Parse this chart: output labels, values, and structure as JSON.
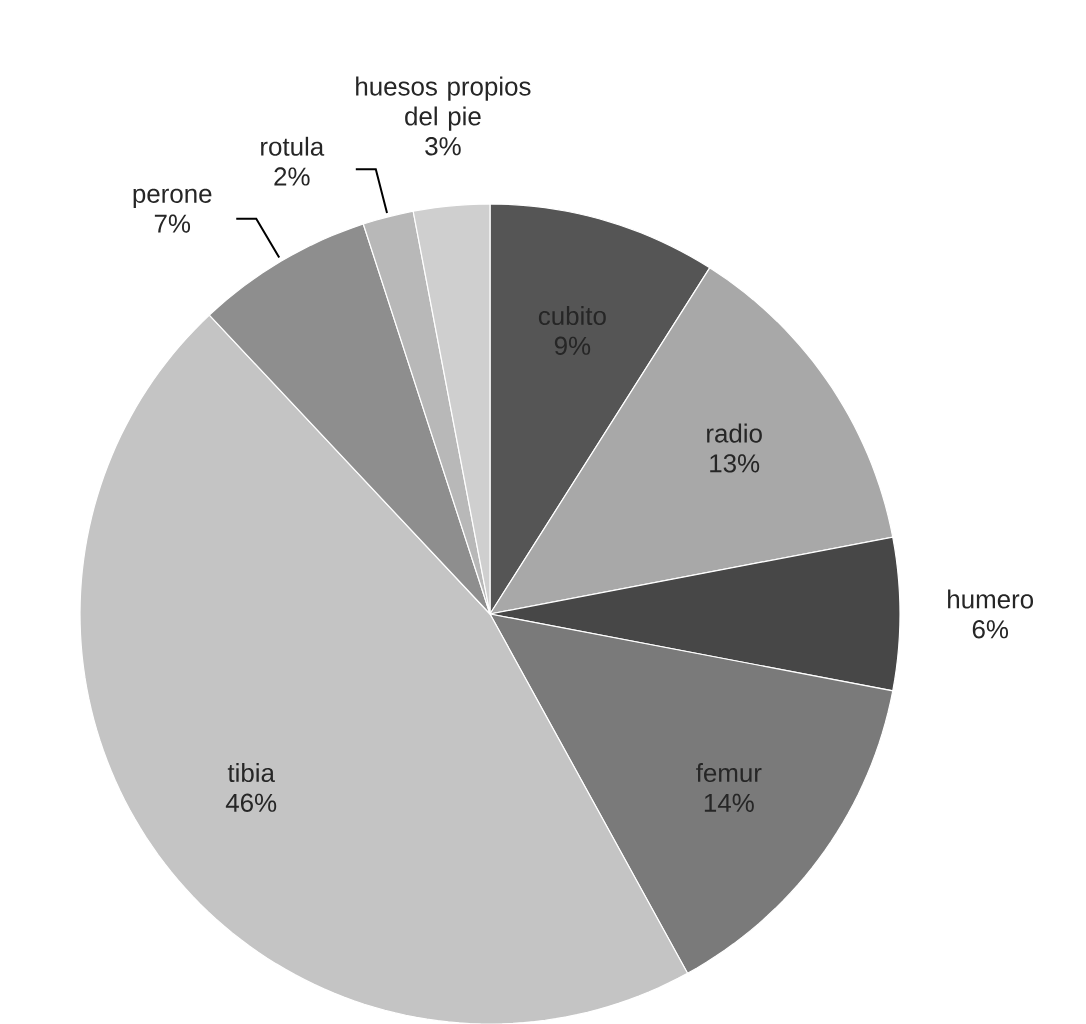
{
  "chart_data": {
    "type": "pie",
    "categories": [
      "cubito",
      "radio",
      "humero",
      "femur",
      "tibia",
      "perone",
      "rotula",
      "huesos propios del pie"
    ],
    "values": [
      9,
      13,
      6,
      14,
      46,
      7,
      2,
      3
    ],
    "value_labels": [
      "9%",
      "13%",
      "6%",
      "14%",
      "46%",
      "7%",
      "2%",
      "3%"
    ],
    "colors": [
      "#555555",
      "#a8a8a8",
      "#474747",
      "#7a7a7a",
      "#c4c4c4",
      "#8e8e8e",
      "#b8b8b8",
      "#cfcfcf"
    ]
  }
}
